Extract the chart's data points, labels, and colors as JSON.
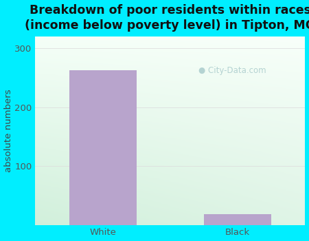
{
  "categories": [
    "White",
    "Black"
  ],
  "values": [
    262,
    18
  ],
  "bar_color": "#b8a4cc",
  "title": "Breakdown of poor residents within races\n(income below poverty level) in Tipton, MO",
  "ylabel": "absolute numbers",
  "ylim": [
    0,
    320
  ],
  "yticks": [
    0,
    100,
    200,
    300
  ],
  "bg_outer": "#00eeff",
  "bg_plot_topleft": "#d8f0e0",
  "bg_plot_topright": "#f0faf8",
  "bg_plot_bottomleft": "#c8ecd8",
  "bg_plot_bottomright": "#e8f8f0",
  "title_fontsize": 12.5,
  "axis_fontsize": 9.5,
  "tick_fontsize": 9.5,
  "bar_width": 0.5,
  "watermark": "City-Data.com",
  "grid_color": "#dddddd"
}
